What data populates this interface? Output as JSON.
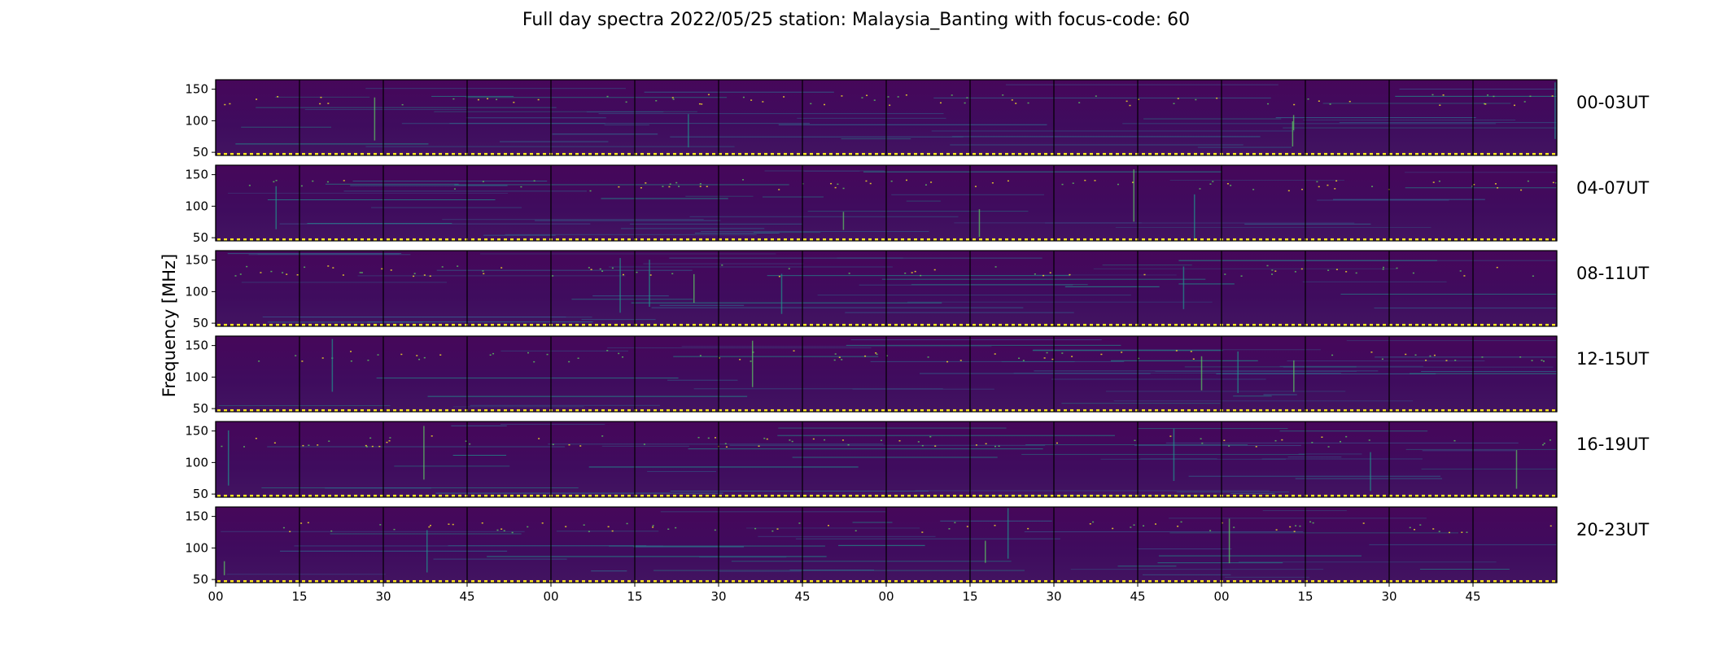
{
  "chart_data": {
    "type": "heatmap",
    "title": "Full day spectra 2022/05/25 station: Malaysia_Banting with focus-code: 60",
    "ylabel": "Frequency [MHz]",
    "xlabel": "",
    "ylim": [
      45,
      165
    ],
    "yticks": [
      50,
      100,
      150
    ],
    "xtick_labels": [
      "00",
      "15",
      "30",
      "45",
      "00",
      "15",
      "30",
      "45",
      "00",
      "15",
      "30",
      "45",
      "00",
      "15",
      "30",
      "45"
    ],
    "panels_per_row": 16,
    "minutes_per_panel": 15,
    "colormap": "viridis",
    "rows": [
      {
        "label": "00-03UT"
      },
      {
        "label": "04-07UT"
      },
      {
        "label": "08-11UT"
      },
      {
        "label": "12-15UT"
      },
      {
        "label": "16-19UT"
      },
      {
        "label": "20-23UT"
      }
    ],
    "colors": {
      "background": "#440154",
      "mid": "#31688e",
      "teal": "#21918c",
      "green": "#5ec962",
      "bright": "#fde725",
      "panel_border": "#000000"
    }
  }
}
